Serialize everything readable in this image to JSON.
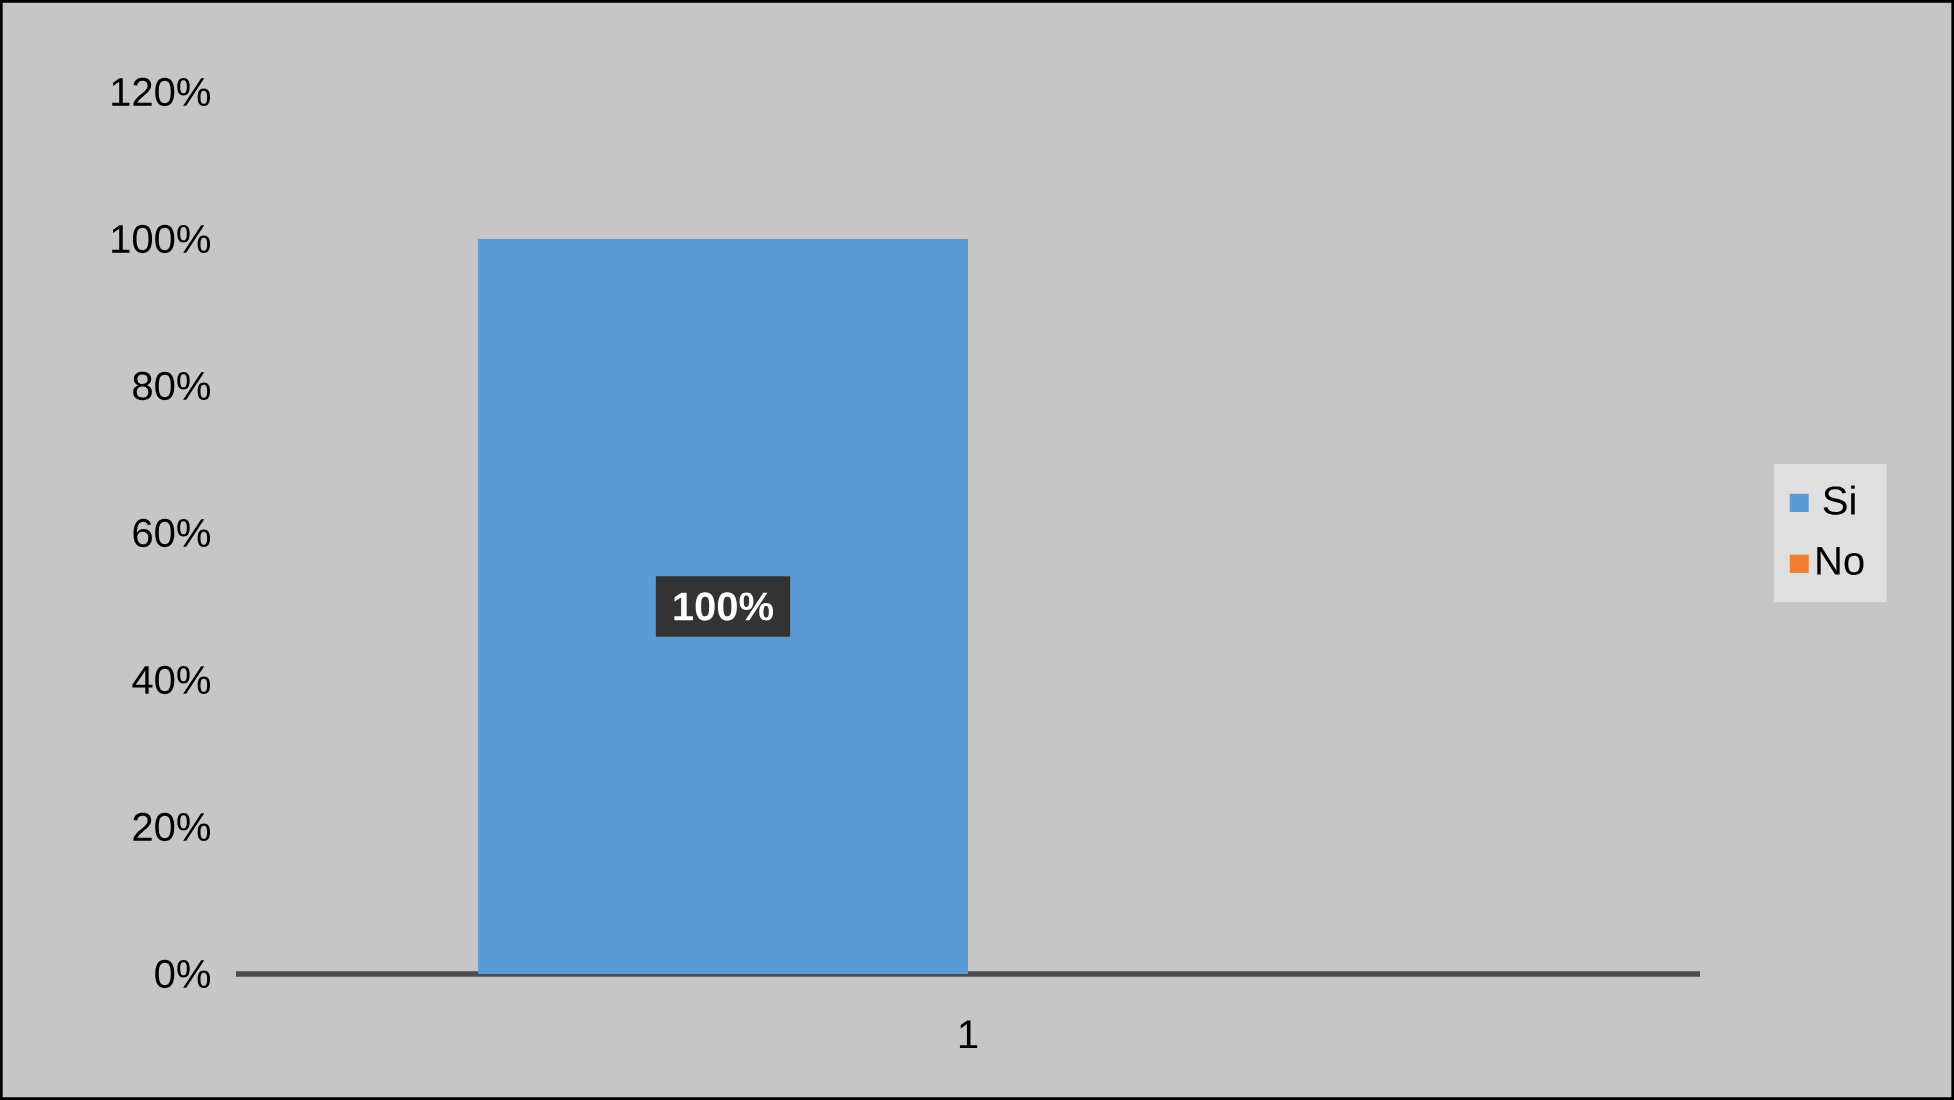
{
  "chart_data": {
    "type": "bar",
    "categories": [
      "1"
    ],
    "series": [
      {
        "name": "Si",
        "color": "#5b9bd5",
        "values": [
          100
        ],
        "value_labels": [
          "100%"
        ]
      },
      {
        "name": "No",
        "color": "#ed7d31",
        "values": [
          0
        ],
        "value_labels": [
          null
        ]
      }
    ],
    "ylim": [
      0,
      120
    ],
    "yticks": [
      {
        "value": 0,
        "label": "0%"
      },
      {
        "value": 20,
        "label": "20%"
      },
      {
        "value": 40,
        "label": "40%"
      },
      {
        "value": 60,
        "label": "60%"
      },
      {
        "value": 80,
        "label": "80%"
      },
      {
        "value": 100,
        "label": "100%"
      },
      {
        "value": 120,
        "label": "120%"
      }
    ],
    "legend": "right"
  }
}
